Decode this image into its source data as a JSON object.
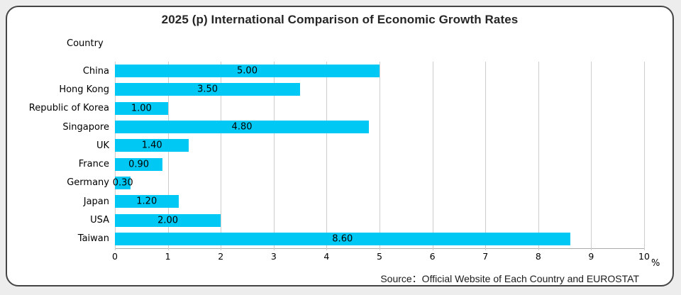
{
  "window": {
    "background_color": "#ededed",
    "card_background": "#ffffff",
    "card_border_color": "#444444"
  },
  "chart_data": {
    "type": "bar",
    "orientation": "horizontal",
    "title": "2025 (p) International Comparison of Economic Growth Rates",
    "axis_label": "Country",
    "unit_label": "%",
    "categories": [
      "China",
      "Hong Kong",
      "Republic of Korea",
      "Singapore",
      "UK",
      "France",
      "Germany",
      "Japan",
      "USA",
      "Taiwan"
    ],
    "values": [
      5.0,
      3.5,
      1.0,
      4.8,
      1.4,
      0.9,
      0.3,
      1.2,
      2.0,
      8.6
    ],
    "value_labels": [
      "5.00",
      "3.50",
      "1.00",
      "4.80",
      "1.40",
      "0.90",
      "0.30",
      "1.20",
      "2.00",
      "8.60"
    ],
    "xlim": [
      0,
      10
    ],
    "xticks": [
      "0",
      "1",
      "2",
      "3",
      "4",
      "5",
      "6",
      "7",
      "8",
      "9",
      "10"
    ],
    "bar_color": "#00c8f5",
    "gridline_color": "#cdcdcd",
    "grid": true,
    "legend": false
  },
  "footer": {
    "source": "Source：Official Website of Each Country and EUROSTAT"
  }
}
